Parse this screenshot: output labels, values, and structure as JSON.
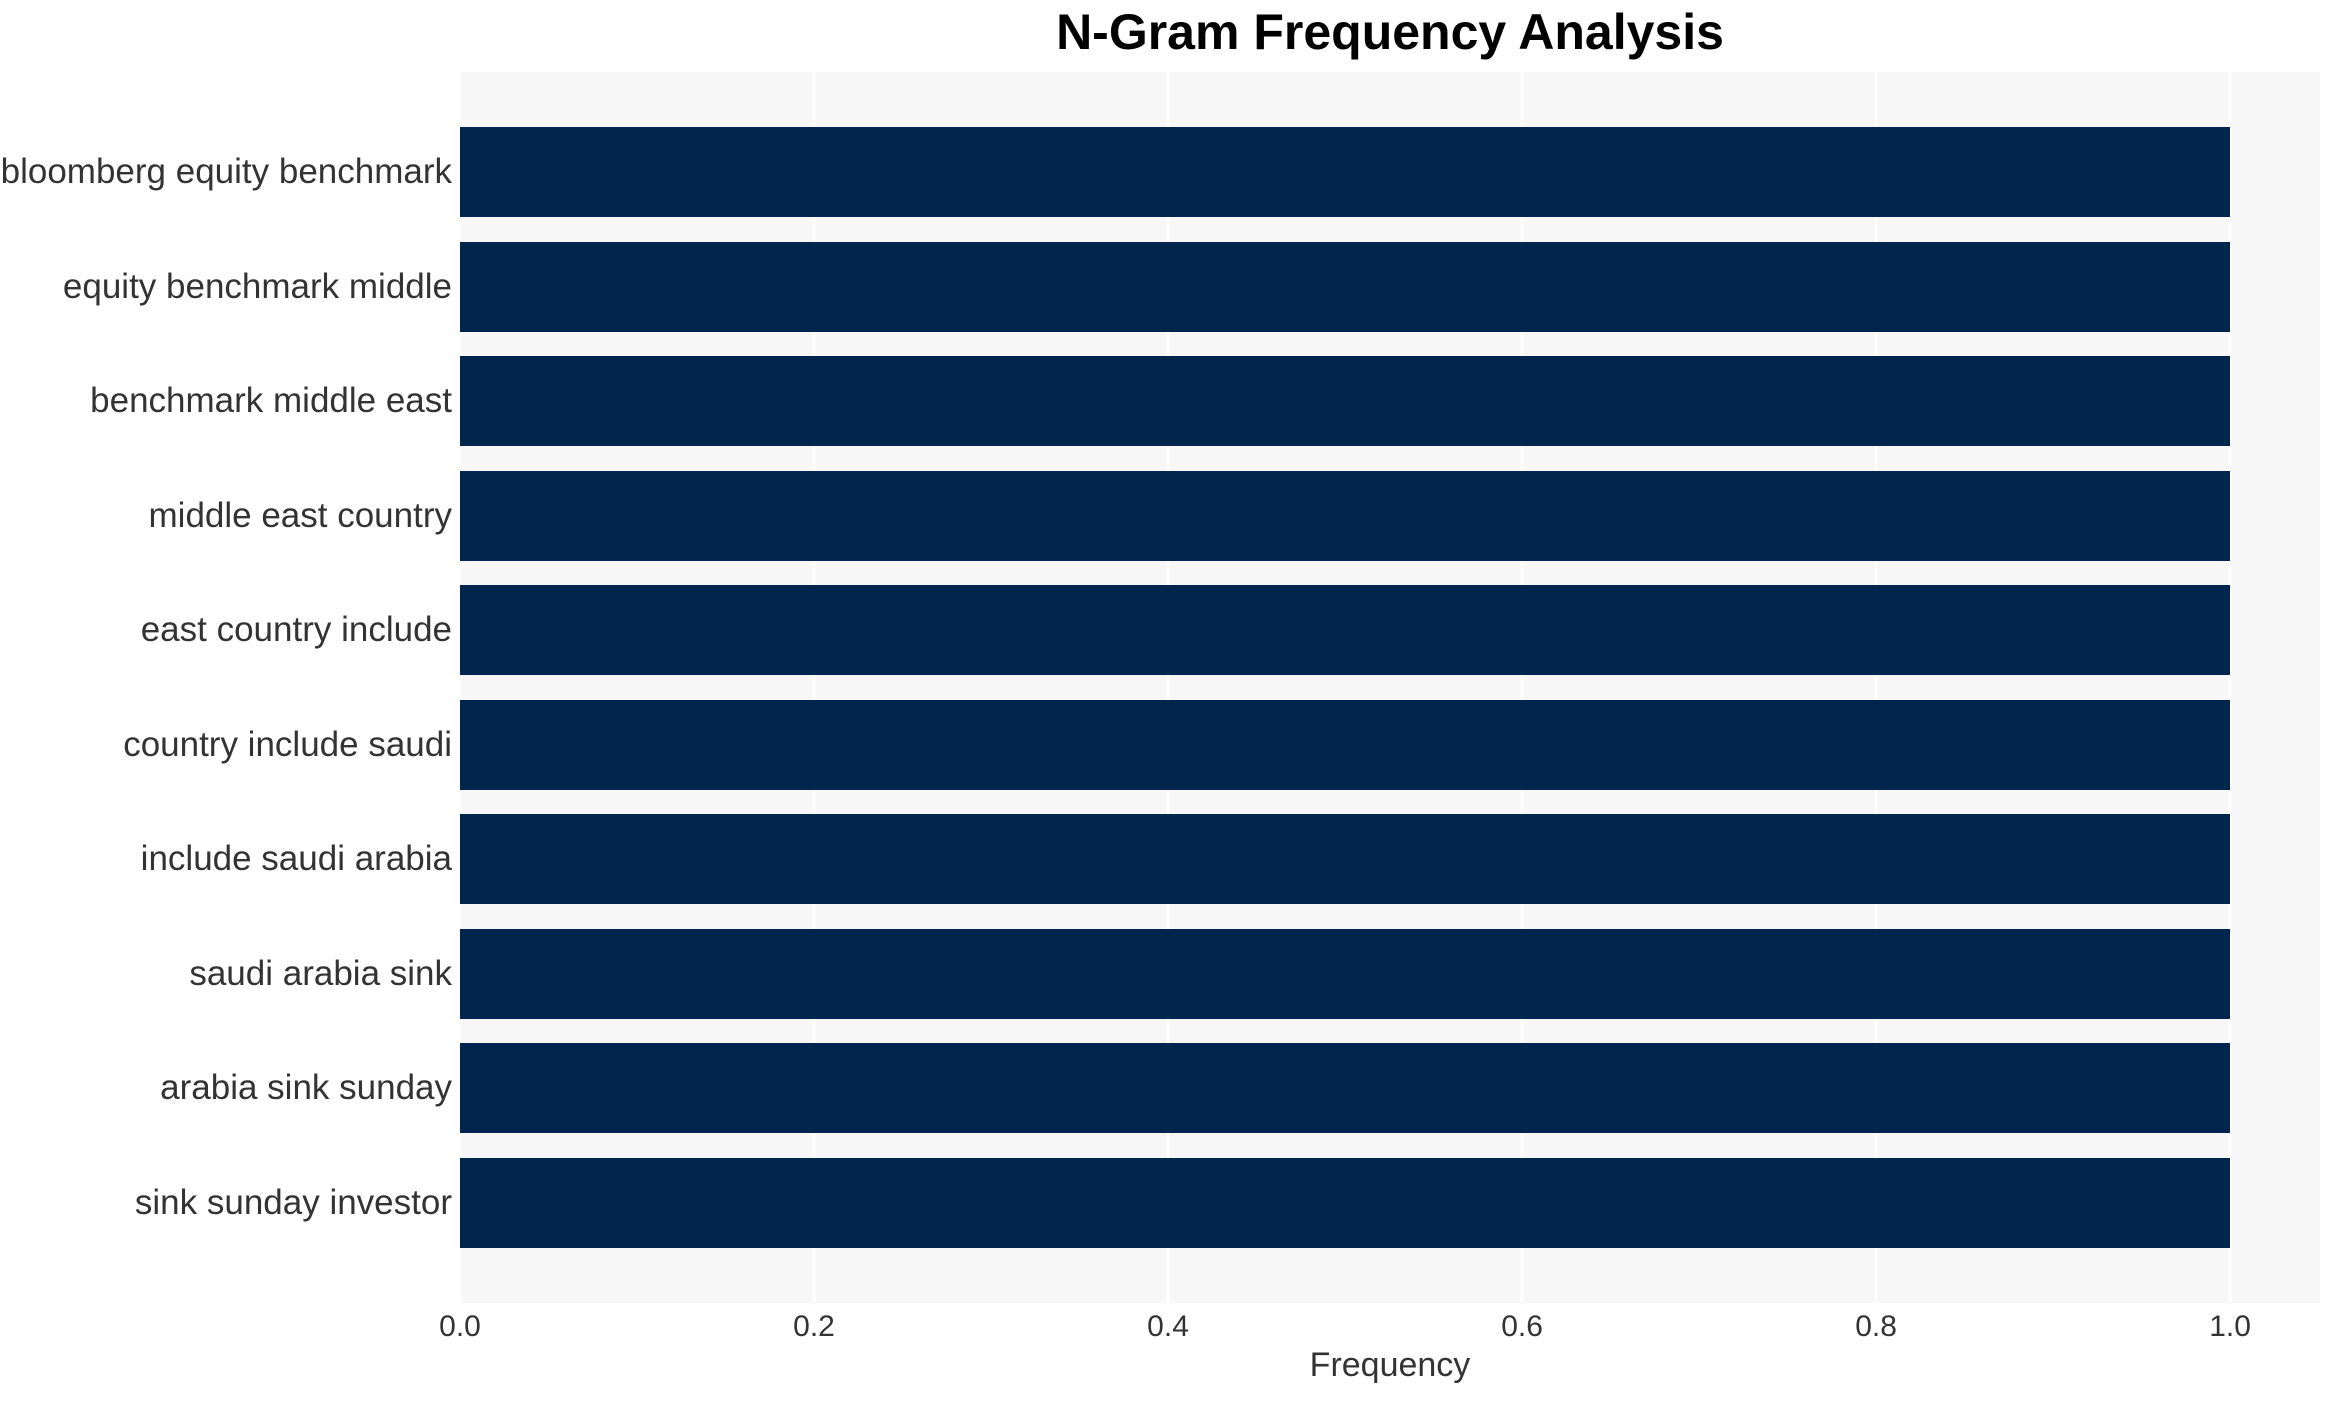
{
  "chart_data": {
    "type": "bar",
    "orientation": "horizontal",
    "title": "N-Gram Frequency Analysis",
    "xlabel": "Frequency",
    "categories": [
      "bloomberg equity benchmark",
      "equity benchmark middle",
      "benchmark middle east",
      "middle east country",
      "east country include",
      "country include saudi",
      "include saudi arabia",
      "saudi arabia sink",
      "arabia sink sunday",
      "sink sunday investor"
    ],
    "values": [
      1.0,
      1.0,
      1.0,
      1.0,
      1.0,
      1.0,
      1.0,
      1.0,
      1.0,
      1.0
    ],
    "xticks": [
      0.0,
      0.2,
      0.4,
      0.6,
      0.8,
      1.0
    ],
    "xtick_labels": [
      "0.0",
      "0.2",
      "0.4",
      "0.6",
      "0.8",
      "1.0"
    ],
    "xlim": [
      0.0,
      1.0508
    ],
    "grid": true,
    "legend_position": "none"
  },
  "style": {
    "bar_color": "#02254e",
    "plot_bg_color": "#f7f7f7",
    "grid_color": "#ffffff",
    "tick_label_color": "#333333",
    "title_color": "#000000"
  }
}
